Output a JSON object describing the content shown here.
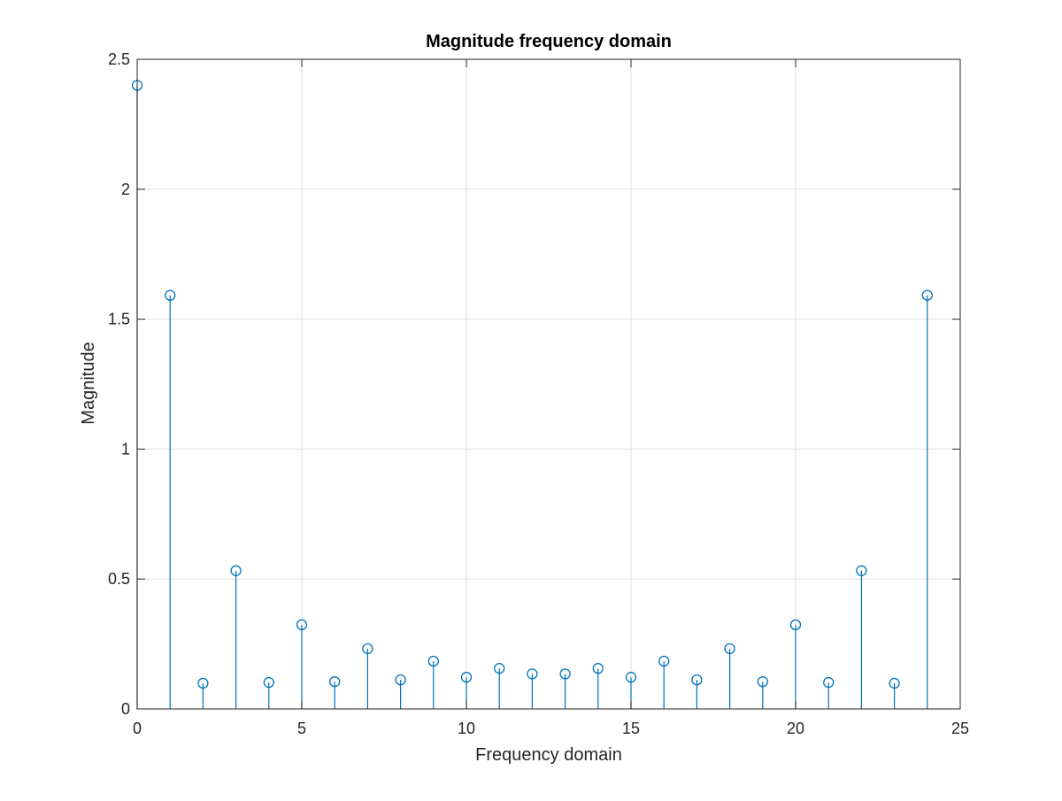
{
  "chart_data": {
    "type": "stem",
    "title": "Magnitude frequency domain",
    "xlabel": "Frequency domain",
    "ylabel": "Magnitude",
    "xlim": [
      0,
      25
    ],
    "ylim": [
      0,
      2.5
    ],
    "xticks": [
      0,
      5,
      10,
      15,
      20,
      25
    ],
    "yticks": [
      0,
      0.5,
      1,
      1.5,
      2,
      2.5
    ],
    "xtick_labels": [
      "0",
      "5",
      "10",
      "15",
      "20",
      "25"
    ],
    "ytick_labels": [
      "0",
      "0.5",
      "1",
      "1.5",
      "2",
      "2.5"
    ],
    "grid": true,
    "marker": "circle",
    "color": "#0072BD",
    "x": [
      0,
      1,
      2,
      3,
      4,
      5,
      6,
      7,
      8,
      9,
      10,
      11,
      12,
      13,
      14,
      15,
      16,
      17,
      18,
      19,
      20,
      21,
      22,
      23,
      24
    ],
    "values": [
      2.4,
      1.592,
      0.099,
      0.532,
      0.102,
      0.324,
      0.105,
      0.232,
      0.112,
      0.184,
      0.122,
      0.156,
      0.135,
      0.135,
      0.156,
      0.122,
      0.184,
      0.112,
      0.232,
      0.105,
      0.324,
      0.102,
      0.532,
      0.099,
      1.592
    ]
  }
}
